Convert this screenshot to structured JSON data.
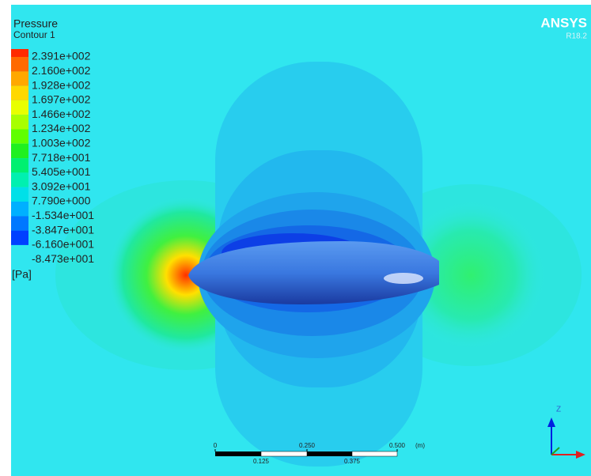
{
  "legend": {
    "title": "Pressure",
    "subtitle": "Contour 1",
    "unit": "[Pa]",
    "labels": [
      "2.391e+002",
      "2.160e+002",
      "1.928e+002",
      "1.697e+002",
      "1.466e+002",
      "1.234e+002",
      "1.003e+002",
      "7.718e+001",
      "5.405e+001",
      "3.092e+001",
      "7.790e+000",
      "-1.534e+001",
      "-3.847e+001",
      "-6.160e+001",
      "-8.473e+001"
    ],
    "colors": [
      "#ff2a00",
      "#ff6a00",
      "#ffa800",
      "#ffd800",
      "#e8ff00",
      "#a8ff00",
      "#60ff00",
      "#20f020",
      "#00f070",
      "#00f0b0",
      "#00e0e8",
      "#00b0ff",
      "#0078ff",
      "#0040ff"
    ]
  },
  "brand": {
    "name": "ANSYS",
    "version": "R18.2"
  },
  "scale_bar": {
    "top_labels": [
      "0",
      "0.250",
      "0.500"
    ],
    "unit": "(m)",
    "bottom_labels": [
      "0.125",
      "0.375"
    ]
  },
  "axes": {
    "z": "Z"
  }
}
